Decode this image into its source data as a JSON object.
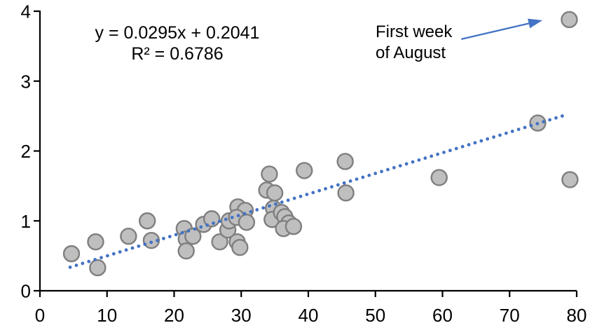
{
  "chart_data": {
    "type": "scatter",
    "title": "",
    "xlabel": "",
    "ylabel": "",
    "xlim": [
      0,
      80
    ],
    "ylim": [
      0,
      4
    ],
    "x_ticks": [
      0,
      10,
      20,
      30,
      40,
      50,
      60,
      70,
      80
    ],
    "y_ticks": [
      0,
      1,
      2,
      3,
      4
    ],
    "grid": false,
    "legend": false,
    "points": [
      [
        4.7,
        0.53
      ],
      [
        8.3,
        0.7
      ],
      [
        8.6,
        0.33
      ],
      [
        13.2,
        0.78
      ],
      [
        16.0,
        1.0
      ],
      [
        16.6,
        0.72
      ],
      [
        21.5,
        0.89
      ],
      [
        21.8,
        0.74
      ],
      [
        21.8,
        0.57
      ],
      [
        22.8,
        0.78
      ],
      [
        24.4,
        0.95
      ],
      [
        25.6,
        1.03
      ],
      [
        26.8,
        0.7
      ],
      [
        28.0,
        0.87
      ],
      [
        28.2,
        1.0
      ],
      [
        29.5,
        1.2
      ],
      [
        30.6,
        1.15
      ],
      [
        29.3,
        1.05
      ],
      [
        30.8,
        0.98
      ],
      [
        29.4,
        0.7
      ],
      [
        29.8,
        0.62
      ],
      [
        34.2,
        1.67
      ],
      [
        33.8,
        1.44
      ],
      [
        35.0,
        1.4
      ],
      [
        34.8,
        1.18
      ],
      [
        34.6,
        1.02
      ],
      [
        36.0,
        1.12
      ],
      [
        36.5,
        1.06
      ],
      [
        37.1,
        0.97
      ],
      [
        36.3,
        0.89
      ],
      [
        37.8,
        0.92
      ],
      [
        39.4,
        1.72
      ],
      [
        45.5,
        1.85
      ],
      [
        45.6,
        1.4
      ],
      [
        59.5,
        1.62
      ],
      [
        74.2,
        2.4
      ],
      [
        78.9,
        3.88
      ],
      [
        79.0,
        1.59
      ]
    ],
    "trendline": {
      "slope": 0.0295,
      "intercept": 0.2041,
      "x_start": 4.5,
      "x_end": 78.5,
      "style": "dotted",
      "equation_label": "y = 0.0295x + 0.2041",
      "r2_label": "R² = 0.6786"
    },
    "annotation": {
      "line1": "First week",
      "line2": "of August",
      "target_point": [
        78.9,
        3.88
      ],
      "arrow_from": [
        62.8,
        3.6
      ],
      "arrow_to": [
        74.9,
        3.87
      ]
    },
    "colors": {
      "marker_fill": "#bfbfbf",
      "marker_stroke": "#7f7f7f",
      "trendline": "#4472c4",
      "arrow": "#4472c4",
      "axis": "#000000",
      "text": "#000000",
      "background": "#ffffff"
    }
  }
}
